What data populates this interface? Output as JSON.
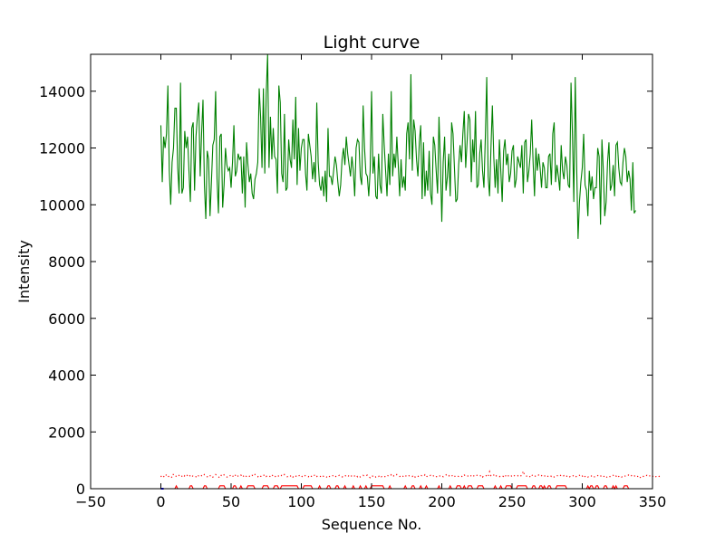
{
  "chart_data": {
    "type": "line",
    "title": "Light curve",
    "xlabel": "Sequence No.",
    "ylabel": "Intensity",
    "xlim": [
      -50,
      350
    ],
    "ylim": [
      0,
      15300
    ],
    "xticks": [
      -50,
      0,
      50,
      100,
      150,
      200,
      250,
      300,
      350
    ],
    "xtick_labels": [
      "−50",
      "0",
      "50",
      "100",
      "150",
      "200",
      "250",
      "300",
      "350"
    ],
    "yticks": [
      0,
      2000,
      4000,
      6000,
      8000,
      10000,
      12000,
      14000
    ],
    "ytick_labels": [
      "0",
      "2000",
      "4000",
      "6000",
      "8000",
      "10000",
      "12000",
      "14000"
    ],
    "grid": false,
    "colors": {
      "green": "#008000",
      "red": "#ff0000",
      "blue": "#0000ff"
    },
    "series": [
      {
        "style": "solid",
        "color": "#008000",
        "x_start": 0,
        "x_step": 1,
        "values": [
          12800,
          10800,
          12400,
          12000,
          12500,
          14200,
          11200,
          10000,
          11500,
          12000,
          13400,
          13400,
          11300,
          10400,
          14300,
          10400,
          10600,
          12600,
          12000,
          12400,
          11200,
          10100,
          12700,
          12900,
          10500,
          12400,
          13100,
          13600,
          11000,
          12500,
          13700,
          10700,
          9500,
          11900,
          11600,
          9600,
          10800,
          12100,
          12300,
          14000,
          10900,
          9700,
          12400,
          12500,
          9900,
          10700,
          12000,
          11400,
          11200,
          11300,
          10600,
          11500,
          12800,
          11000,
          11200,
          11800,
          11600,
          11700,
          10400,
          11700,
          9900,
          12200,
          11400,
          10800,
          11100,
          10400,
          10200,
          10900,
          11100,
          11500,
          14100,
          13100,
          11300,
          14100,
          11100,
          13900,
          15300,
          11300,
          13100,
          11600,
          12700,
          11700,
          11600,
          10400,
          14200,
          13600,
          11100,
          10800,
          13200,
          10500,
          10600,
          12300,
          11600,
          11300,
          13000,
          11600,
          13800,
          10700,
          12700,
          11200,
          12000,
          12300,
          12300,
          11100,
          10500,
          12500,
          12100,
          11700,
          10900,
          11500,
          10800,
          13600,
          11500,
          10700,
          10500,
          11000,
          10300,
          11200,
          10100,
          12700,
          11000,
          11000,
          10700,
          11200,
          11700,
          11400,
          10800,
          10300,
          10700,
          11600,
          12000,
          11400,
          12400,
          11800,
          11400,
          11000,
          11700,
          11200,
          10300,
          12000,
          12300,
          12200,
          11000,
          10700,
          13500,
          12000,
          11100,
          11000,
          10300,
          11200,
          14000,
          11100,
          11700,
          10300,
          10200,
          11800,
          10700,
          10400,
          13200,
          12100,
          11200,
          10300,
          11800,
          10700,
          14000,
          11000,
          11800,
          11300,
          12400,
          11400,
          10300,
          11600,
          10600,
          11000,
          10500,
          12500,
          12900,
          11600,
          14600,
          11200,
          13000,
          12600,
          11600,
          11000,
          12200,
          12800,
          10200,
          12200,
          10300,
          11200,
          10500,
          11900,
          10400,
          10000,
          12400,
          12100,
          11200,
          10400,
          13100,
          11500,
          9400,
          11500,
          12400,
          10500,
          11000,
          11800,
          10300,
          12900,
          12500,
          11300,
          10100,
          10200,
          11400,
          12100,
          11500,
          12500,
          13300,
          11300,
          12200,
          13200,
          13000,
          10800,
          12300,
          11500,
          13300,
          10600,
          10700,
          11800,
          12300,
          11200,
          10600,
          12400,
          14500,
          11000,
          10300,
          12000,
          13500,
          11700,
          10600,
          11600,
          10400,
          12300,
          11200,
          10100,
          11900,
          12300,
          11400,
          11800,
          10800,
          11100,
          11900,
          12100,
          10600,
          10900,
          11700,
          11500,
          11300,
          12100,
          10400,
          12200,
          12300,
          10800,
          11200,
          11800,
          13000,
          11500,
          10300,
          12000,
          11200,
          11800,
          11300,
          10600,
          11500,
          11300,
          10600,
          10600,
          11700,
          11800,
          10700,
          12500,
          12900,
          10800,
          11400,
          11000,
          10500,
          12100,
          11200,
          10900,
          11700,
          11400,
          10700,
          10600,
          14300,
          12500,
          10100,
          14500,
          11400,
          8800,
          10100,
          10800,
          11300,
          12500,
          10700,
          10500,
          9600,
          11200,
          10500,
          11000,
          10200,
          10600,
          10600,
          12000,
          11700,
          9300,
          12300,
          11200,
          9600,
          10100,
          11500,
          12200,
          10500,
          10700,
          11400,
          10300,
          12100,
          12200,
          11300,
          10800,
          10700,
          11500,
          12000,
          11700,
          10800,
          11200,
          10900,
          9800,
          11500,
          9700,
          9800
        ]
      },
      {
        "style": "dotted",
        "color": "#ff0000",
        "x_start": 0,
        "x_step": 1,
        "values": [
          450,
          380,
          420,
          510,
          470,
          400,
          460,
          440,
          390,
          520,
          480,
          430,
          410,
          470,
          500,
          440,
          390,
          460,
          420,
          480,
          510,
          430,
          400,
          470,
          450,
          420,
          490,
          440,
          410,
          460,
          430,
          500,
          470,
          420,
          390,
          450,
          480,
          410,
          440,
          500,
          460,
          420,
          380,
          470,
          430,
          490,
          450,
          410,
          440,
          480,
          420,
          460,
          400,
          470,
          510,
          440,
          430,
          480,
          400,
          450,
          490,
          420,
          460,
          440,
          410,
          470,
          430,
          500,
          450,
          420,
          480,
          440,
          410,
          460,
          500,
          430,
          470,
          450,
          420,
          490,
          440,
          400,
          460,
          480,
          430,
          410,
          470,
          440,
          500,
          450,
          420,
          460,
          430,
          480,
          410,
          470,
          440,
          450,
          490,
          420,
          400,
          460,
          430,
          470,
          450,
          420,
          480,
          440,
          410,
          460,
          500,
          430,
          470,
          450,
          420,
          390,
          460,
          440,
          410,
          470,
          430,
          450,
          480,
          420,
          400,
          460,
          440,
          470,
          430,
          410,
          450,
          480,
          420,
          460,
          440,
          400,
          470,
          430,
          450,
          490,
          420,
          460,
          410,
          440,
          470,
          430,
          450,
          480,
          420,
          390,
          460,
          440,
          470,
          410,
          450,
          430,
          480,
          420,
          460,
          440,
          410,
          470,
          450,
          430,
          490,
          420,
          460,
          440,
          500,
          470,
          430,
          450,
          410,
          480,
          440,
          460,
          420,
          470,
          450,
          430,
          480,
          410,
          460,
          440,
          420,
          470,
          450,
          430,
          490,
          410,
          460,
          440,
          470,
          420,
          450,
          480,
          430,
          410,
          460,
          440,
          470,
          420,
          450,
          490,
          430,
          460,
          410,
          440,
          480,
          420,
          470,
          450,
          430,
          460,
          440,
          410,
          480,
          450,
          420,
          470,
          430,
          460,
          500,
          440,
          420,
          470,
          450,
          430,
          480,
          410,
          460,
          440,
          470,
          420,
          600,
          450,
          430,
          480,
          410,
          460,
          440,
          420,
          470,
          450,
          430,
          490,
          410,
          460,
          440,
          480,
          420,
          470,
          450,
          430,
          460,
          410,
          440,
          480,
          620,
          470,
          450,
          430,
          460,
          410,
          490,
          440,
          470,
          420,
          450,
          480,
          430,
          460,
          410,
          440,
          470,
          420,
          450,
          480,
          430,
          460,
          410,
          440,
          470,
          420,
          450,
          480,
          430,
          460,
          410,
          440,
          470,
          420,
          450,
          480,
          430,
          460,
          410,
          440,
          470,
          420,
          450,
          380,
          430,
          460,
          410,
          440,
          470,
          420,
          450,
          400,
          430,
          460,
          410,
          440,
          470,
          420,
          450,
          390,
          430,
          460,
          410,
          440,
          470,
          420,
          450,
          380,
          430,
          460,
          410,
          440,
          470,
          420,
          450,
          480,
          430,
          460,
          410,
          440,
          470,
          420,
          450,
          380,
          430,
          460,
          410,
          440,
          470,
          420,
          450,
          400,
          430,
          460,
          410,
          440,
          470,
          420,
          450
        ]
      },
      {
        "style": "solid",
        "color": "#ff0000",
        "x_start": 0,
        "x_step": 1,
        "values": [
          0,
          0,
          0,
          0,
          0,
          0,
          0,
          0,
          0,
          0,
          0,
          100,
          0,
          0,
          0,
          0,
          0,
          0,
          0,
          0,
          0,
          100,
          100,
          0,
          0,
          0,
          0,
          0,
          0,
          0,
          0,
          100,
          100,
          0,
          0,
          0,
          0,
          0,
          0,
          0,
          0,
          0,
          100,
          100,
          100,
          100,
          0,
          0,
          0,
          0,
          0,
          0,
          100,
          100,
          0,
          0,
          0,
          100,
          0,
          0,
          0,
          0,
          100,
          100,
          100,
          100,
          100,
          0,
          0,
          0,
          0,
          0,
          0,
          100,
          100,
          100,
          100,
          0,
          0,
          0,
          0,
          100,
          100,
          100,
          0,
          0,
          100,
          100,
          100,
          100,
          100,
          100,
          100,
          100,
          100,
          100,
          100,
          100,
          0,
          0,
          0,
          0,
          100,
          100,
          100,
          100,
          100,
          100,
          0,
          0,
          0,
          0,
          0,
          100,
          0,
          0,
          0,
          0,
          0,
          100,
          100,
          0,
          0,
          0,
          0,
          100,
          100,
          0,
          0,
          0,
          0,
          100,
          0,
          0,
          0,
          0,
          0,
          100,
          0,
          0,
          0,
          0,
          100,
          0,
          0,
          0,
          100,
          0,
          0,
          0,
          100,
          100,
          100,
          100,
          100,
          100,
          100,
          100,
          100,
          0,
          0,
          0,
          0,
          100,
          0,
          0,
          0,
          0,
          0,
          0,
          0,
          0,
          0,
          0,
          100,
          0,
          0,
          0,
          0,
          100,
          100,
          0,
          0,
          0,
          0,
          100,
          0,
          0,
          0,
          100,
          0,
          0,
          0,
          0,
          0,
          0,
          0,
          0,
          100,
          0,
          0,
          0,
          0,
          0,
          0,
          0,
          100,
          0,
          0,
          0,
          0,
          100,
          100,
          100,
          0,
          0,
          100,
          0,
          0,
          100,
          100,
          100,
          0,
          0,
          0,
          0,
          100,
          100,
          100,
          100,
          0,
          0,
          0,
          0,
          0,
          0,
          0,
          0,
          100,
          0,
          0,
          0,
          100,
          0,
          0,
          0,
          100,
          100,
          100,
          100,
          0,
          0,
          0,
          0,
          100,
          100,
          100,
          100,
          100,
          100,
          100,
          0,
          0,
          0,
          0,
          100,
          100,
          0,
          0,
          0,
          100,
          100,
          0,
          100,
          0,
          0,
          100,
          100,
          0,
          0,
          0,
          0,
          100,
          100,
          100,
          100,
          100,
          100,
          100,
          0,
          0,
          0,
          0,
          0,
          0,
          0,
          0,
          0,
          0,
          0,
          0,
          0,
          0,
          0,
          100,
          0,
          100,
          100,
          0,
          0,
          100,
          100,
          0,
          0,
          0,
          0,
          100,
          100,
          0,
          0,
          0,
          0,
          100,
          0,
          100,
          0,
          0,
          0,
          0,
          0,
          100,
          100,
          100,
          0,
          0,
          0,
          0,
          0,
          0
        ]
      },
      {
        "style": "solid",
        "color": "#0000ff",
        "x": [
          0,
          2
        ],
        "values": [
          0,
          0
        ]
      }
    ]
  }
}
